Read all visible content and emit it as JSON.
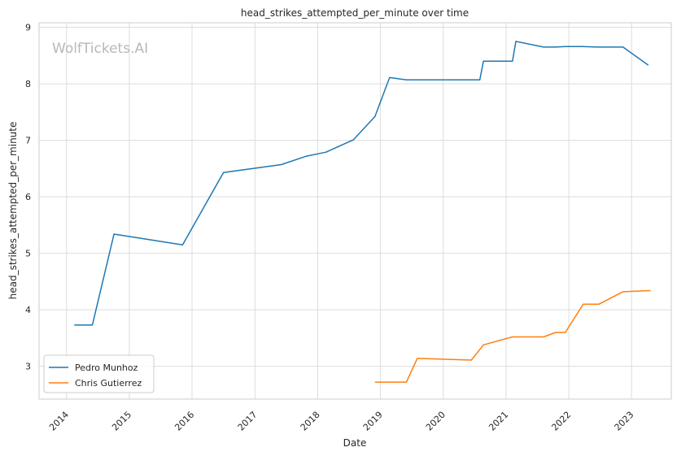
{
  "chart_data": {
    "type": "line",
    "title": "head_strikes_attempted_per_minute over time",
    "xlabel": "Date",
    "ylabel": "head_strikes_attempted_per_minute",
    "watermark": "WolfTickets.AI",
    "x_ticks": [
      "2014",
      "2015",
      "2016",
      "2017",
      "2018",
      "2019",
      "2020",
      "2021",
      "2022",
      "2023"
    ],
    "y_ticks": [
      3,
      4,
      5,
      6,
      7,
      8,
      9
    ],
    "xlim": [
      "2013-07-25",
      "2023-08-20"
    ],
    "ylim": [
      2.42,
      9.08
    ],
    "grid": true,
    "legend_position": "lower-left",
    "series": [
      {
        "name": "Pedro Munhoz",
        "color": "#1f77b4",
        "points": [
          [
            "2014-02-15",
            3.73
          ],
          [
            "2014-05-31",
            3.73
          ],
          [
            "2014-10-04",
            5.34
          ],
          [
            "2015-11-07",
            5.15
          ],
          [
            "2016-07-02",
            6.43
          ],
          [
            "2017-06-03",
            6.57
          ],
          [
            "2017-10-28",
            6.72
          ],
          [
            "2018-02-18",
            6.79
          ],
          [
            "2018-07-28",
            7.01
          ],
          [
            "2018-11-30",
            7.42
          ],
          [
            "2019-02-23",
            8.11
          ],
          [
            "2019-06-01",
            8.07
          ],
          [
            "2020-08-01",
            8.07
          ],
          [
            "2020-08-22",
            8.4
          ],
          [
            "2021-02-07",
            8.4
          ],
          [
            "2021-02-27",
            8.75
          ],
          [
            "2021-08-07",
            8.65
          ],
          [
            "2021-10-16",
            8.65
          ],
          [
            "2021-12-11",
            8.66
          ],
          [
            "2022-03-19",
            8.66
          ],
          [
            "2022-06-18",
            8.65
          ],
          [
            "2022-11-12",
            8.65
          ],
          [
            "2023-04-08",
            8.33
          ]
        ]
      },
      {
        "name": "Chris Gutierrez",
        "color": "#ff7f0e",
        "points": [
          [
            "2018-11-30",
            2.72
          ],
          [
            "2019-06-01",
            2.72
          ],
          [
            "2019-08-03",
            3.14
          ],
          [
            "2020-06-13",
            3.11
          ],
          [
            "2020-08-22",
            3.38
          ],
          [
            "2021-02-06",
            3.52
          ],
          [
            "2021-08-07",
            3.52
          ],
          [
            "2021-10-16",
            3.6
          ],
          [
            "2021-12-11",
            3.6
          ],
          [
            "2022-03-26",
            4.1
          ],
          [
            "2022-06-25",
            4.1
          ],
          [
            "2022-11-12",
            4.32
          ],
          [
            "2023-04-22",
            4.34
          ]
        ]
      }
    ]
  }
}
